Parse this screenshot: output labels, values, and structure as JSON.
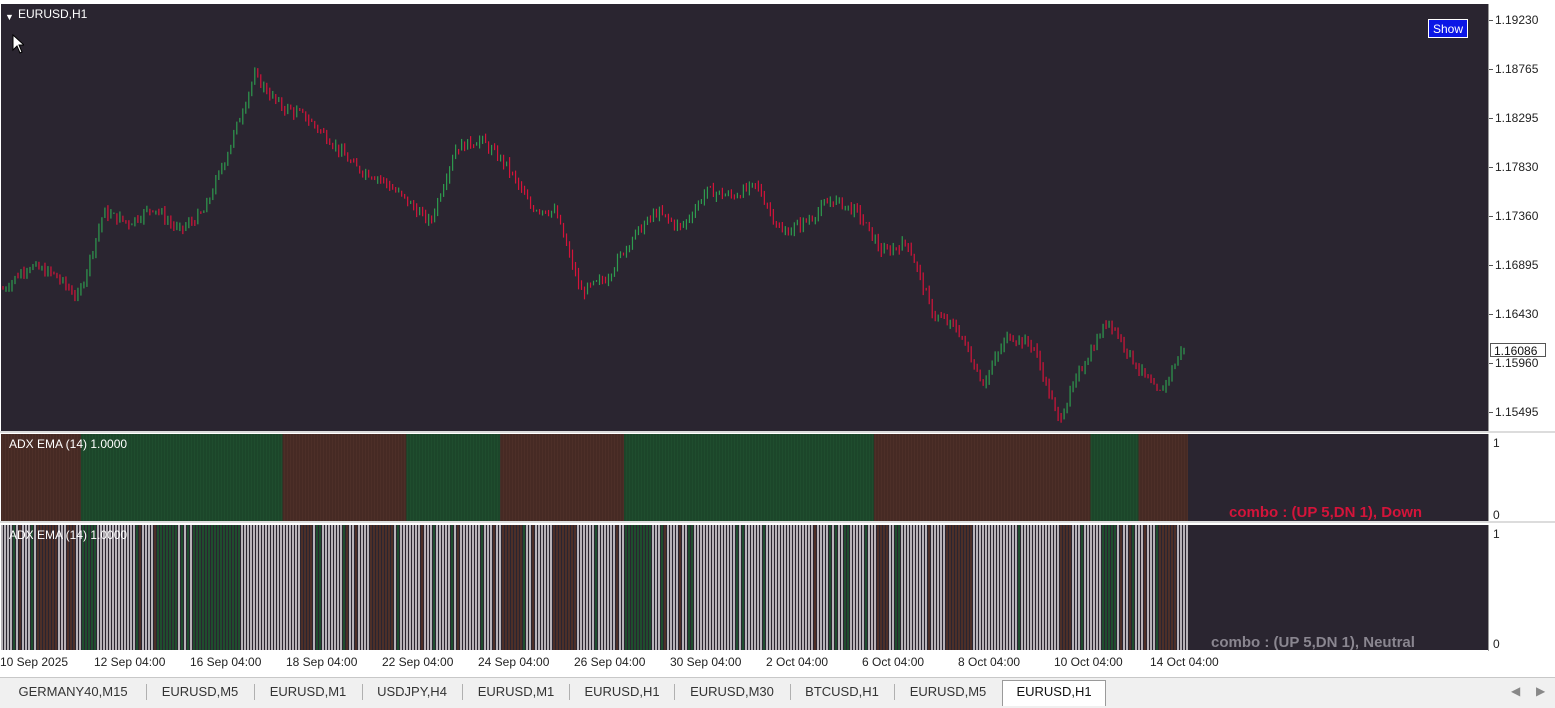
{
  "chart": {
    "symbol_title": "EURUSD,H1",
    "show_button": "Show",
    "price_ticks": [
      "1.19230",
      "1.18765",
      "1.18295",
      "1.17830",
      "1.17360",
      "1.16895",
      "1.16430",
      "1.15960",
      "1.15495"
    ],
    "current_price": "1.16086",
    "time_labels": [
      "10 Sep 2025",
      "12 Sep 04:00",
      "16 Sep 04:00",
      "18 Sep 04:00",
      "22 Sep 04:00",
      "24 Sep 04:00",
      "26 Sep 04:00",
      "30 Sep 04:00",
      "2 Oct 04:00",
      "6 Oct 04:00",
      "8 Oct 04:00",
      "10 Oct 04:00",
      "14 Oct 04:00"
    ],
    "bull_color": "#2e9b4e",
    "bear_color": "#d4143a"
  },
  "chart_data": {
    "type": "candlestick",
    "symbol": "EURUSD",
    "timeframe": "H1",
    "ylim": [
      1.1535,
      1.1935
    ],
    "close_path": [
      1.1668,
      1.169,
      1.1682,
      1.166,
      1.174,
      1.173,
      1.1745,
      1.1722,
      1.174,
      1.18,
      1.1868,
      1.184,
      1.183,
      1.1808,
      1.1782,
      1.1772,
      1.1752,
      1.173,
      1.18,
      1.1808,
      1.1785,
      1.1745,
      1.174,
      1.1665,
      1.1678,
      1.1715,
      1.174,
      1.1725,
      1.176,
      1.1755,
      1.1765,
      1.172,
      1.1732,
      1.1752,
      1.174,
      1.1702,
      1.1712,
      1.1645,
      1.163,
      1.158,
      1.1625,
      1.1615,
      1.1545,
      1.1598,
      1.164,
      1.16,
      1.1568,
      1.1615
    ],
    "indicator_1": {
      "title": "ADX EMA (14) 1.0000",
      "label": "combo : (UP 5,DN 1), Down",
      "ylim": [
        0,
        1
      ],
      "ticks": [
        "1",
        "0"
      ],
      "state_fractions": [
        {
          "state": "down",
          "from": 0.0,
          "to": 0.0673
        },
        {
          "state": "up",
          "from": 0.0673,
          "to": 0.2372
        },
        {
          "state": "down",
          "from": 0.2372,
          "to": 0.3415
        },
        {
          "state": "up",
          "from": 0.3415,
          "to": 0.4206
        },
        {
          "state": "down",
          "from": 0.4206,
          "to": 0.5249
        },
        {
          "state": "up",
          "from": 0.5249,
          "to": 0.7354
        },
        {
          "state": "down",
          "from": 0.7354,
          "to": 0.9179
        },
        {
          "state": "up",
          "from": 0.9179,
          "to": 0.9583
        },
        {
          "state": "down",
          "from": 0.9583,
          "to": 1.0
        }
      ]
    },
    "indicator_2": {
      "title": "ADX EMA (14) 1.0000",
      "label": "combo : (UP 5,DN 1), Neutral",
      "ylim": [
        0,
        1
      ],
      "ticks": [
        "1",
        "0"
      ],
      "colors": {
        "up": "#1f4d2e",
        "down": "#4d2f28",
        "neutral": "#b7b2b8"
      }
    }
  },
  "tabs": [
    {
      "label": "GERMANY40,M15"
    },
    {
      "label": "EURUSD,M5"
    },
    {
      "label": "EURUSD,M1"
    },
    {
      "label": "USDJPY,H4"
    },
    {
      "label": "EURUSD,M1"
    },
    {
      "label": "EURUSD,H1"
    },
    {
      "label": "EURUSD,M30"
    },
    {
      "label": "BTCUSD,H1"
    },
    {
      "label": "EURUSD,M5"
    },
    {
      "label": "EURUSD,H1",
      "active": true
    }
  ]
}
